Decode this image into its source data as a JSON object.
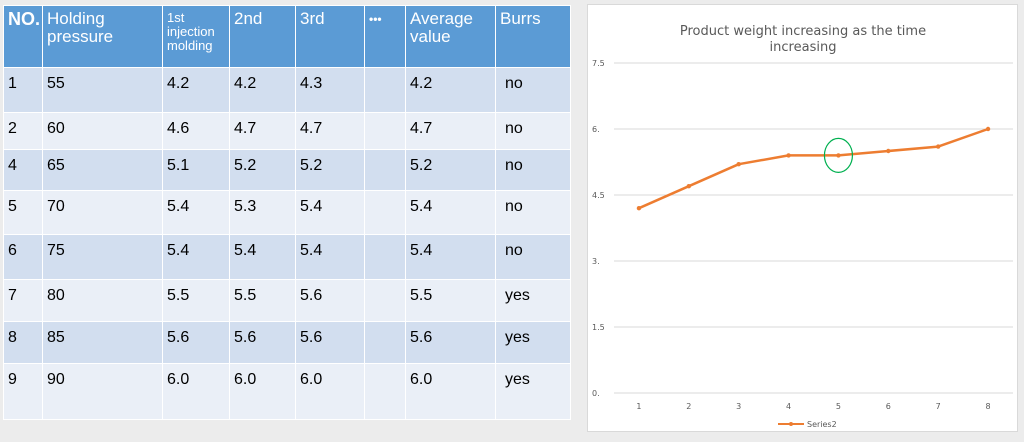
{
  "table": {
    "headers": [
      {
        "label": "NO.",
        "cls": "first"
      },
      {
        "label": "Holding pressure",
        "cls": ""
      },
      {
        "label": "1st injection molding",
        "cls": "small"
      },
      {
        "label": "2nd",
        "cls": ""
      },
      {
        "label": "3rd",
        "cls": ""
      },
      {
        "label": "•••",
        "cls": "dots"
      },
      {
        "label": "Average value",
        "cls": ""
      },
      {
        "label": "Burrs",
        "cls": ""
      }
    ],
    "rows": [
      [
        "1",
        "55",
        "4.2",
        "4.2",
        "4.3",
        "",
        "4.2",
        "no"
      ],
      [
        "2",
        "60",
        "4.6",
        "4.7",
        "4.7",
        "",
        "4.7",
        "no"
      ],
      [
        "4",
        "65",
        "5.1",
        "5.2",
        "5.2",
        "",
        "5.2",
        "no"
      ],
      [
        "5",
        "70",
        "5.4",
        "5.3",
        "5.4",
        "",
        "5.4",
        "no"
      ],
      [
        "6",
        "75",
        "5.4",
        "5.4",
        "5.4",
        "",
        "5.4",
        "no"
      ],
      [
        "7",
        "80",
        "5.5",
        "5.5",
        "5.6",
        "",
        "5.5",
        "yes"
      ],
      [
        "8",
        "85",
        "5.6",
        "5.6",
        "5.6",
        "",
        "5.6",
        "yes"
      ],
      [
        "9",
        "90",
        "6.0",
        "6.0",
        "6.0",
        "",
        "6.0",
        "yes"
      ]
    ]
  },
  "chart_data": {
    "type": "line",
    "title": "Product weight increasing as the time increasing",
    "title_lines": [
      "Product weight increasing as the time",
      "increasing"
    ],
    "x": [
      "1",
      "2",
      "3",
      "4",
      "5",
      "6",
      "7",
      "8"
    ],
    "series": [
      {
        "name": "Series2",
        "values": [
          4.2,
          4.7,
          5.2,
          5.4,
          5.4,
          5.5,
          5.6,
          6.0
        ],
        "color": "#ed7d31"
      }
    ],
    "y_ticks": [
      "0.",
      "1.5",
      "3.",
      "4.5",
      "6.",
      "7.5"
    ],
    "ylim": [
      0,
      7.5
    ],
    "grid": true,
    "legend": "bottom",
    "highlight": {
      "x": "5",
      "y": 5.4,
      "color": "#00b050"
    }
  }
}
